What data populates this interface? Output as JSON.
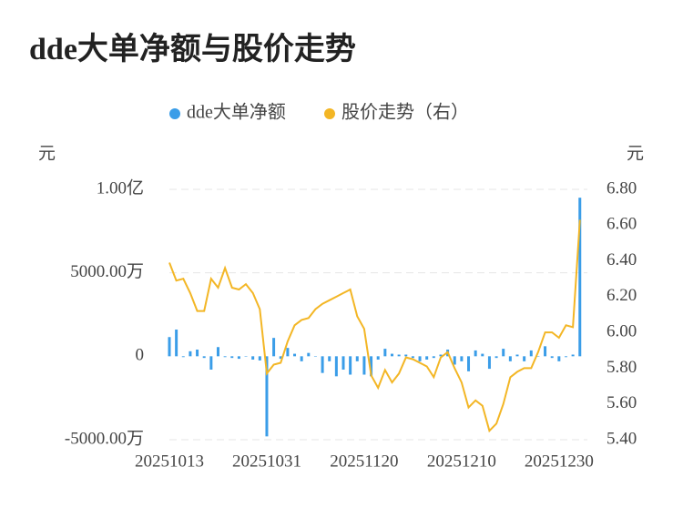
{
  "chart_data": {
    "type": "bar-line",
    "title": "dde大单净额与股价走势",
    "y_unit": "元",
    "y2_unit": "元",
    "categories": [
      "20251013",
      null,
      null,
      null,
      null,
      null,
      null,
      null,
      null,
      null,
      null,
      null,
      null,
      null,
      "20251031",
      null,
      null,
      null,
      null,
      null,
      null,
      null,
      null,
      null,
      null,
      null,
      null,
      null,
      "20251120",
      null,
      null,
      null,
      null,
      null,
      null,
      null,
      null,
      null,
      null,
      null,
      null,
      null,
      "20251210",
      null,
      null,
      null,
      null,
      null,
      null,
      null,
      null,
      null,
      null,
      null,
      null,
      null,
      "20251230",
      null,
      null,
      null
    ],
    "series": [
      {
        "name": "dde大单净额",
        "type": "bar",
        "color": "#3a9de8",
        "values": [
          1150,
          1600,
          -50,
          300,
          400,
          -100,
          -800,
          550,
          -50,
          -100,
          -150,
          0,
          -200,
          -250,
          -4800,
          1100,
          -150,
          500,
          150,
          -300,
          200,
          0,
          -1000,
          -300,
          -1200,
          -800,
          -1100,
          -300,
          -1100,
          -1200,
          -200,
          450,
          150,
          100,
          100,
          -100,
          -300,
          -200,
          -100,
          100,
          400,
          -500,
          -300,
          -900,
          350,
          150,
          -750,
          -100,
          450,
          -300,
          100,
          -300,
          350,
          0,
          600,
          -100,
          -300,
          -50,
          100,
          9500
        ]
      },
      {
        "name": "股价走势（右）",
        "type": "line",
        "axis": "y2",
        "color": "#f3b625",
        "values": [
          6.39,
          6.29,
          6.3,
          6.22,
          6.12,
          6.12,
          6.3,
          6.25,
          6.36,
          6.25,
          6.24,
          6.27,
          6.22,
          6.13,
          5.77,
          5.82,
          5.83,
          5.95,
          6.04,
          6.07,
          6.08,
          6.13,
          6.16,
          6.18,
          6.2,
          6.22,
          6.24,
          6.09,
          6.02,
          5.76,
          5.69,
          5.79,
          5.72,
          5.77,
          5.86,
          5.85,
          5.83,
          5.81,
          5.75,
          5.86,
          5.89,
          5.8,
          5.72,
          5.58,
          5.62,
          5.59,
          5.45,
          5.49,
          5.6,
          5.75,
          5.78,
          5.8,
          5.8,
          5.89,
          6.0,
          6.0,
          5.97,
          6.04,
          6.03,
          6.63
        ]
      }
    ],
    "ylim": [
      -5000,
      10000
    ],
    "yticks": [
      {
        "value": -5000,
        "label": "-5000.00万"
      },
      0,
      {
        "value": 5000,
        "label": "5000.00万"
      },
      {
        "value": 10000,
        "label": "1.00亿"
      }
    ],
    "y2lim": [
      5.4,
      6.8
    ],
    "y2ticks": [
      {
        "value": 5.4,
        "label": "5.40"
      },
      {
        "value": 5.6,
        "label": "5.60"
      },
      {
        "value": 5.8,
        "label": "5.80"
      },
      {
        "value": 6.0,
        "label": "6.00"
      },
      {
        "value": 6.2,
        "label": "6.20"
      },
      {
        "value": 6.4,
        "label": "6.40"
      },
      {
        "value": 6.6,
        "label": "6.60"
      },
      {
        "value": 6.8,
        "label": "6.80"
      }
    ],
    "grid": true
  }
}
